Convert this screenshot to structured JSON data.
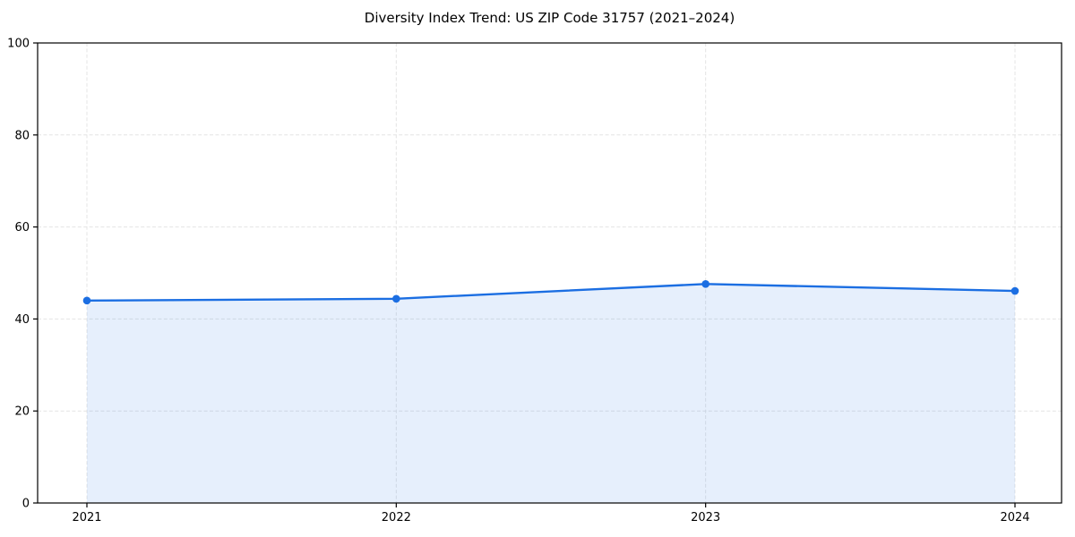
{
  "chart_data": {
    "type": "line",
    "title": "Diversity Index Trend: US ZIP Code 31757 (2021–2024)",
    "x": [
      "2021",
      "2022",
      "2023",
      "2024"
    ],
    "series": [
      {
        "name": "Diversity Index",
        "values": [
          44.0,
          44.4,
          47.6,
          46.1
        ]
      }
    ],
    "ylim": [
      0,
      100
    ],
    "yticks": [
      0,
      20,
      40,
      60,
      80,
      100
    ],
    "xlabel": "",
    "ylabel": "",
    "legend": "none",
    "grid": {
      "style": "dashed",
      "axes": "both"
    },
    "marker": "circle",
    "area_fill": true,
    "colors": {
      "line": "#1b6ee2",
      "marker": "#1b6ee2",
      "fill": "rgba(27,110,226,0.11)",
      "grid": "#e4e4e4",
      "axis": "#000000",
      "text": "#000000",
      "background": "#ffffff"
    }
  }
}
